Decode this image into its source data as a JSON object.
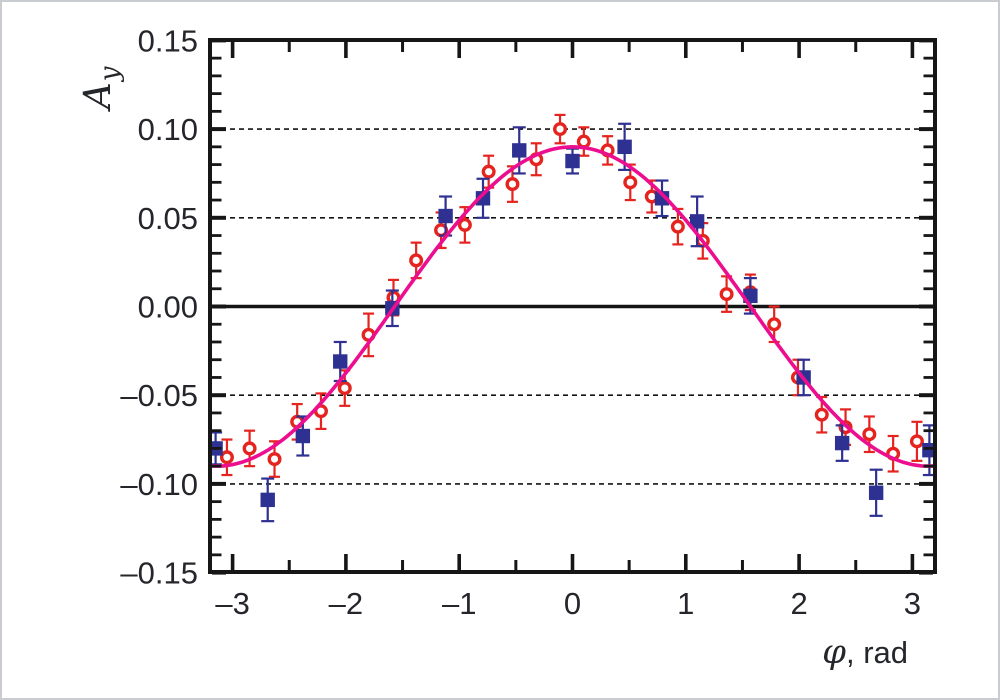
{
  "figure": {
    "kind": "physics scatter plot with cosine fit",
    "background": "#ffffff",
    "border_color": "#c9cdd1"
  },
  "axis_labels": {
    "y_main": "A",
    "y_sub": "y",
    "x_italic": "φ",
    "x_rest": ", rad"
  },
  "colors": {
    "red_series": "#e5231f",
    "blue_series": "#2e3192",
    "fit_curve": "#ec0e8f",
    "axis": "#161616",
    "grid": "#141414",
    "text": "#24262b"
  },
  "chart_data": {
    "type": "scatter",
    "title": "",
    "xlabel": "φ, rad",
    "ylabel": "A_y",
    "xlim": [
      -3.2,
      3.2
    ],
    "ylim": [
      -0.15,
      0.15
    ],
    "grid": "dashed horizontal lines at ±0.05 and ±0.10, solid bold line at 0",
    "legend_position": "none",
    "x_major_ticks": [
      -3,
      -2,
      -1,
      0,
      1,
      2,
      3
    ],
    "x_tick_labels": [
      "–3",
      "–2",
      "–1",
      "0",
      "1",
      "2",
      "3"
    ],
    "x_minor_ticks": [
      -2.5,
      -1.5,
      -0.5,
      0.5,
      1.5,
      2.5
    ],
    "y_major_ticks": [
      -0.15,
      -0.1,
      -0.05,
      0,
      0.05,
      0.1,
      0.15
    ],
    "y_tick_labels": [
      "–0.15",
      "–0.10",
      "–0.05",
      "0.00",
      "0.05",
      "0.10",
      "0.15"
    ],
    "y_minor_step": 0.01,
    "dashed_gridlines": [
      -0.1,
      -0.05,
      0.05,
      0.1
    ],
    "zero_line": true,
    "series": [
      {
        "name": "open-red-circles",
        "marker": "open-circle",
        "color": "#e5231f",
        "points": [
          [
            -3.05,
            -0.085,
            0.01
          ],
          [
            -2.85,
            -0.08,
            0.01
          ],
          [
            -2.63,
            -0.086,
            0.01
          ],
          [
            -2.43,
            -0.065,
            0.01
          ],
          [
            -2.22,
            -0.059,
            0.01
          ],
          [
            -2.01,
            -0.046,
            0.01
          ],
          [
            -1.8,
            -0.016,
            0.012
          ],
          [
            -1.58,
            0.005,
            0.01
          ],
          [
            -1.38,
            0.026,
            0.01
          ],
          [
            -1.16,
            0.043,
            0.01
          ],
          [
            -0.95,
            0.046,
            0.01
          ],
          [
            -0.74,
            0.076,
            0.009
          ],
          [
            -0.53,
            0.069,
            0.01
          ],
          [
            -0.32,
            0.083,
            0.009
          ],
          [
            -0.11,
            0.1,
            0.008
          ],
          [
            0.1,
            0.093,
            0.008
          ],
          [
            0.31,
            0.088,
            0.008
          ],
          [
            0.51,
            0.07,
            0.01
          ],
          [
            0.7,
            0.062,
            0.009
          ],
          [
            0.93,
            0.045,
            0.01
          ],
          [
            1.15,
            0.037,
            0.01
          ],
          [
            1.36,
            0.007,
            0.01
          ],
          [
            1.57,
            0.008,
            0.01
          ],
          [
            1.78,
            -0.01,
            0.01
          ],
          [
            1.99,
            -0.04,
            0.01
          ],
          [
            2.2,
            -0.061,
            0.01
          ],
          [
            2.41,
            -0.068,
            0.01
          ],
          [
            2.62,
            -0.072,
            0.01
          ],
          [
            2.83,
            -0.083,
            0.01
          ],
          [
            3.04,
            -0.076,
            0.011
          ]
        ]
      },
      {
        "name": "filled-blue-squares",
        "marker": "filled-square",
        "color": "#2e3192",
        "points": [
          [
            -3.15,
            -0.08,
            0.009
          ],
          [
            -2.69,
            -0.109,
            0.012
          ],
          [
            -2.38,
            -0.073,
            0.011
          ],
          [
            -2.05,
            -0.031,
            0.011
          ],
          [
            -1.59,
            -0.001,
            0.01
          ],
          [
            -1.12,
            0.051,
            0.011
          ],
          [
            -0.79,
            0.061,
            0.011
          ],
          [
            -0.47,
            0.088,
            0.013
          ],
          [
            0.0,
            0.082,
            0.007
          ],
          [
            0.46,
            0.09,
            0.013
          ],
          [
            0.79,
            0.061,
            0.01
          ],
          [
            1.1,
            0.048,
            0.014
          ],
          [
            1.57,
            0.006,
            0.01
          ],
          [
            2.04,
            -0.04,
            0.01
          ],
          [
            2.38,
            -0.077,
            0.01
          ],
          [
            2.68,
            -0.105,
            0.013
          ],
          [
            3.15,
            -0.081,
            0.014
          ]
        ]
      }
    ],
    "fit_curve": {
      "name": "cosine-fit",
      "color": "#ec0e8f",
      "amplitude": 0.09,
      "phase_rad": 0.0,
      "formula": "A_y = 0.090 · cos(φ)"
    }
  }
}
